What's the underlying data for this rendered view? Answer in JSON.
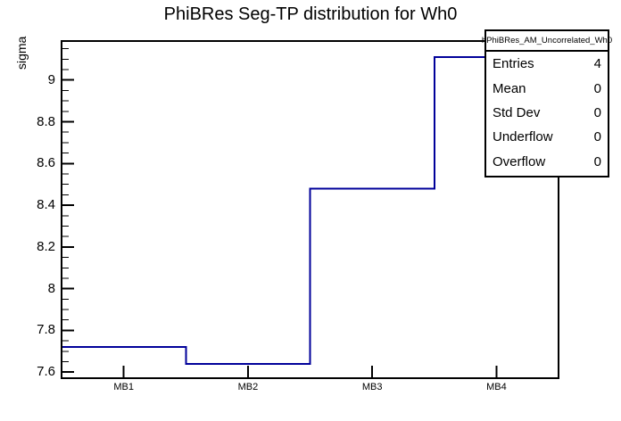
{
  "title": "PhiBRes Seg-TP distribution for Wh0",
  "y_axis_label": "sigma",
  "stats_box": {
    "header": "hPhiBRes_AM_Uncorrelated_Wh0",
    "rows": [
      {
        "label": "Entries",
        "value": "4"
      },
      {
        "label": "Mean",
        "value": "0"
      },
      {
        "label": "Std Dev",
        "value": "0"
      },
      {
        "label": "Underflow",
        "value": "0"
      },
      {
        "label": "Overflow",
        "value": "0"
      }
    ]
  },
  "colors": {
    "histogram_line": "#00009a",
    "frame": "#000000",
    "background": "#ffffff",
    "text": "#000000"
  },
  "chart_data": {
    "type": "line",
    "style": "step-histogram",
    "title": "PhiBRes Seg-TP distribution for Wh0",
    "xlabel": "",
    "ylabel": "sigma",
    "categories": [
      "MB1",
      "MB2",
      "MB3",
      "MB4"
    ],
    "values": [
      7.72,
      7.64,
      8.48,
      9.11
    ],
    "ylim": [
      7.571,
      9.187
    ],
    "yticks": [
      7.6,
      7.8,
      8.0,
      8.2,
      8.4,
      8.6,
      8.8,
      9.0
    ],
    "ytick_labels": [
      "7.6",
      "7.8",
      "8",
      "8.2",
      "8.4",
      "8.6",
      "8.8",
      "9"
    ],
    "minor_tick_step": 0.05,
    "grid": false,
    "legend": false
  }
}
